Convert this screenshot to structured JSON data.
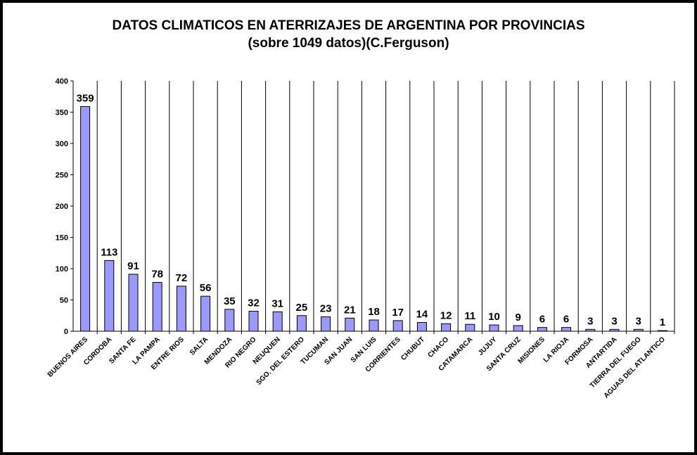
{
  "chart_data": {
    "type": "bar",
    "title": "DATOS CLIMATICOS EN ATERRIZAJES DE ARGENTINA POR PROVINCIAS",
    "subtitle": "(sobre 1049 datos)(C.Ferguson)",
    "xlabel": "",
    "ylabel": "",
    "ylim": [
      0,
      400
    ],
    "yticks": [
      "0",
      "50",
      "100",
      "150",
      "200",
      "250",
      "300",
      "350",
      "400"
    ],
    "grid": "vertical lines between categories",
    "legend": "none",
    "categories": [
      "BUENOS AIRES",
      "CORDOBA",
      "SANTA FE",
      "LA PAMPA",
      "ENTRE RIOS",
      "SALTA",
      "MENDOZA",
      "RIO NEGRO",
      "NEUQUEN",
      "SGO. DEL ESTERO",
      "TUCUMAN",
      "SAN JUAN",
      "SAN LUIS",
      "CORRIENTES",
      "CHUBUT",
      "CHACO",
      "CATAMARCA",
      "JUJUY",
      "SANTA CRUZ",
      "MISIONES",
      "LA RIOJA",
      "FORMOSA",
      "ANTARTIDA",
      "TIERRA DEL FUEGO",
      "AGUAS DEL ATLANTICO"
    ],
    "values": [
      359,
      113,
      91,
      78,
      72,
      56,
      35,
      32,
      31,
      25,
      23,
      21,
      18,
      17,
      14,
      12,
      11,
      10,
      9,
      6,
      6,
      3,
      3,
      3,
      1
    ],
    "bar_color": "#9999ff",
    "bar_outline": "#000000"
  }
}
